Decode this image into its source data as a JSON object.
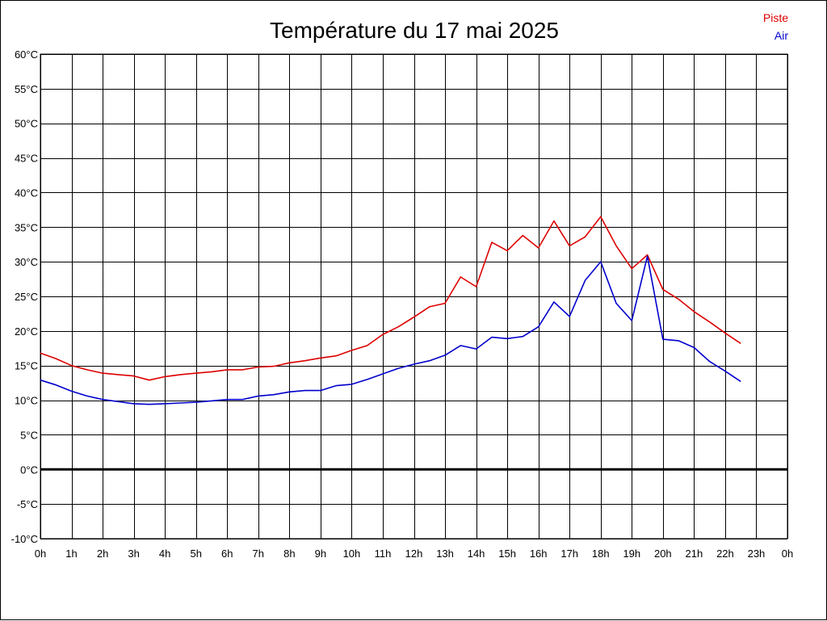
{
  "chart_data": {
    "type": "line",
    "title": "Température du 17 mai 2025",
    "x_tick_labels": [
      "0h",
      "1h",
      "2h",
      "3h",
      "4h",
      "5h",
      "6h",
      "7h",
      "8h",
      "9h",
      "10h",
      "11h",
      "12h",
      "13h",
      "14h",
      "15h",
      "16h",
      "17h",
      "18h",
      "19h",
      "20h",
      "21h",
      "22h",
      "23h",
      "0h"
    ],
    "y_tick_labels": [
      "60°C",
      "55°C",
      "50°C",
      "45°C",
      "40°C",
      "35°C",
      "30°C",
      "25°C",
      "20°C",
      "15°C",
      "10°C",
      "5°C",
      "0°C",
      "-5°C",
      "-10°C"
    ],
    "xlim": [
      0,
      24
    ],
    "ylim": [
      -10,
      60
    ],
    "grid": true,
    "legend_position": "top-right",
    "x": [
      0,
      0.5,
      1,
      1.5,
      2,
      2.5,
      3,
      3.5,
      4,
      4.5,
      5,
      5.5,
      6,
      6.5,
      7,
      7.5,
      8,
      8.5,
      9,
      9.5,
      10,
      10.5,
      11,
      11.5,
      12,
      12.5,
      13,
      13.5,
      14,
      14.5,
      15,
      15.5,
      16,
      16.5,
      17,
      17.5,
      18,
      18.5,
      19,
      19.5,
      20,
      20.5,
      21,
      21.5,
      22,
      22.5
    ],
    "series": [
      {
        "name": "Piste",
        "color": "#dd0000",
        "values": [
          16.8,
          16.0,
          15.0,
          14.4,
          13.9,
          13.7,
          13.5,
          12.9,
          13.4,
          13.7,
          13.9,
          14.1,
          14.4,
          14.4,
          14.8,
          14.9,
          15.4,
          15.7,
          16.1,
          16.4,
          17.2,
          17.9,
          19.5,
          20.6,
          22.0,
          23.5,
          24.0,
          27.8,
          26.4,
          32.8,
          31.6,
          33.8,
          32.0,
          35.9,
          32.3,
          33.6,
          36.5,
          32.3,
          29.0,
          31.0,
          26.0,
          24.6,
          22.8,
          21.3,
          19.7,
          18.2
        ]
      },
      {
        "name": "Air",
        "color": "#0000cc",
        "values": [
          12.9,
          12.2,
          11.3,
          10.6,
          10.1,
          9.8,
          9.5,
          9.4,
          9.5,
          9.6,
          9.7,
          9.9,
          10.1,
          10.1,
          10.6,
          10.8,
          11.2,
          11.4,
          11.4,
          12.1,
          12.3,
          13.0,
          13.8,
          14.6,
          15.2,
          15.7,
          16.5,
          17.9,
          17.4,
          19.1,
          18.9,
          19.2,
          20.6,
          24.2,
          22.1,
          27.3,
          30.0,
          24.0,
          21.5,
          30.8,
          18.8,
          18.6,
          17.6,
          15.6,
          14.2,
          12.7
        ]
      }
    ],
    "zero_line": true
  }
}
